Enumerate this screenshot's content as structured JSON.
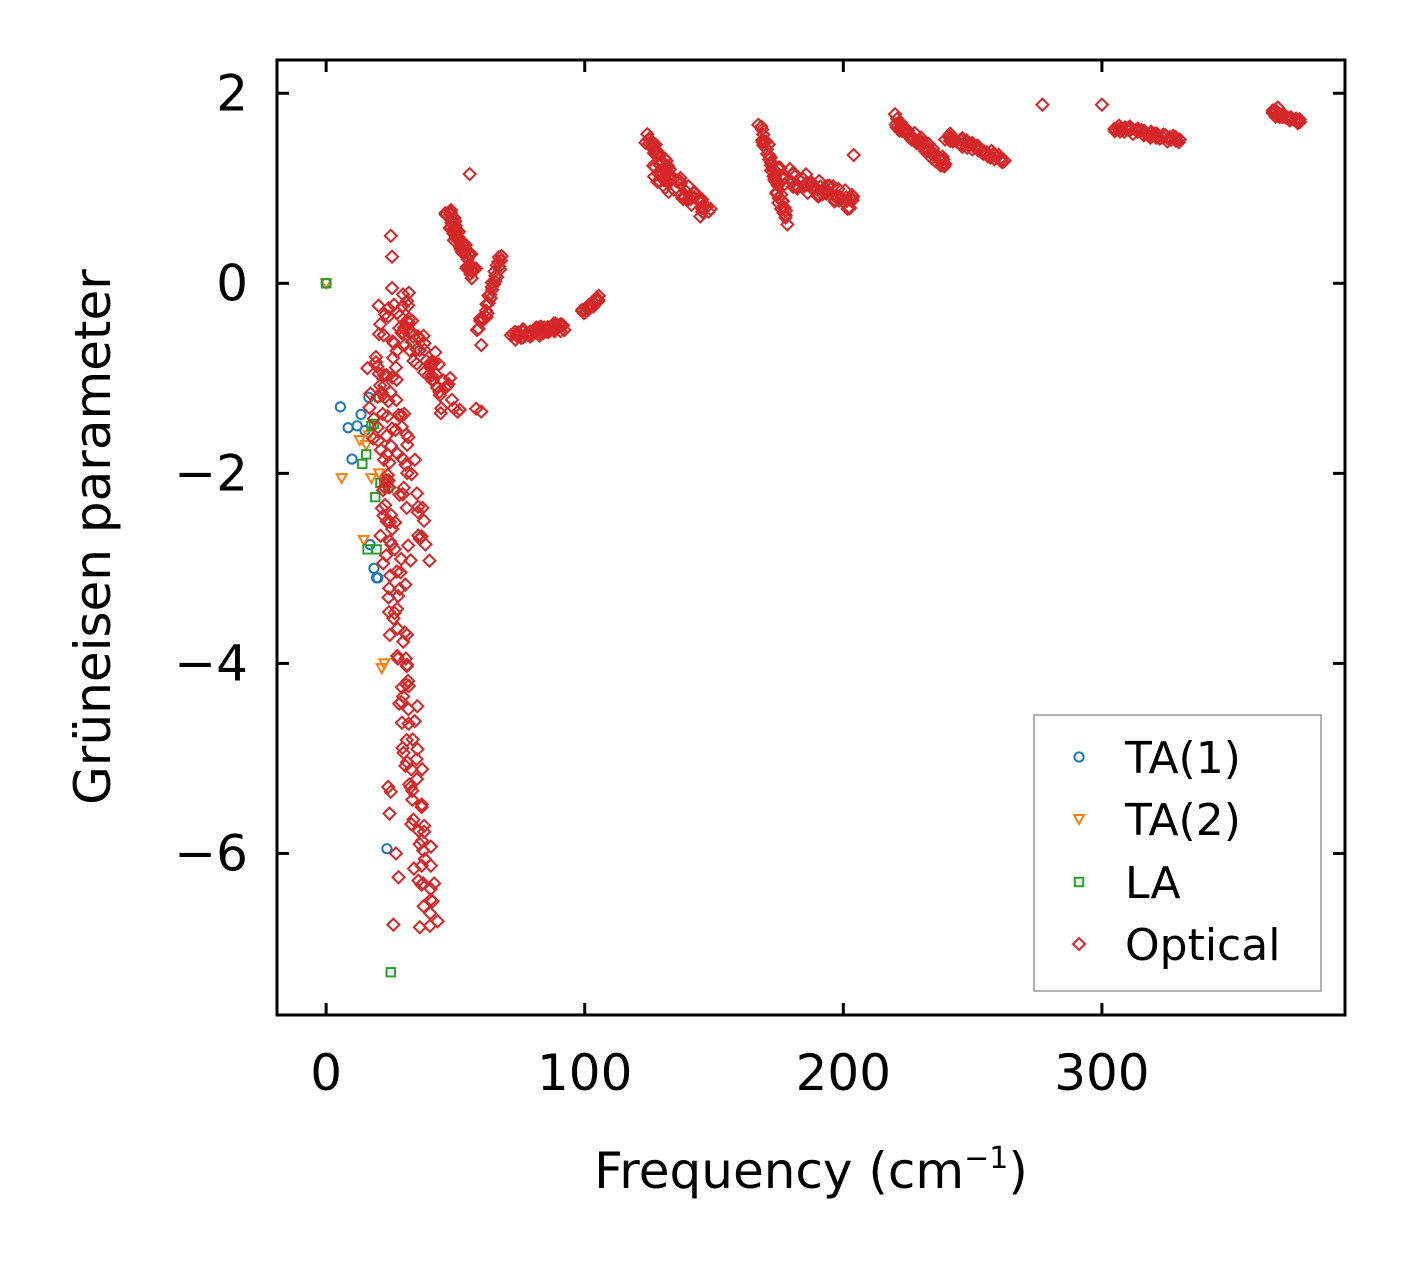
{
  "chart_data": {
    "type": "scatter",
    "title": "",
    "xlabel": "Frequency (cm",
    "xlabel_sup": "−1",
    "xlabel_close": ")",
    "ylabel": "Grüneisen parameter",
    "xlim": [
      -19,
      394
    ],
    "ylim": [
      -7.7,
      2.35
    ],
    "xticks": [
      0,
      100,
      200,
      300
    ],
    "yticks": [
      2,
      0,
      -2,
      -4,
      -6
    ],
    "xtick_labels": [
      "0",
      "100",
      "200",
      "300"
    ],
    "ytick_labels": [
      "2",
      "0",
      "−2",
      "−4",
      "−6"
    ],
    "grid": false,
    "legend_position": "lower-right",
    "series": [
      {
        "name": "TA(1)",
        "marker": "circle",
        "color": "#1f77b4",
        "points": [
          [
            0,
            0
          ],
          [
            5.5,
            -1.3
          ],
          [
            8.5,
            -1.52
          ],
          [
            10,
            -1.85
          ],
          [
            12,
            -1.5
          ],
          [
            13.5,
            -1.38
          ],
          [
            15,
            -1.55
          ],
          [
            16.5,
            -1.2
          ],
          [
            17,
            -2.75
          ],
          [
            18.5,
            -3.0
          ],
          [
            19.5,
            -3.1
          ],
          [
            20,
            -3.1
          ],
          [
            23.5,
            -5.95
          ]
        ]
      },
      {
        "name": "TA(2)",
        "marker": "triangle-down",
        "color": "#ff7f0e",
        "points": [
          [
            0,
            0
          ],
          [
            6,
            -2.05
          ],
          [
            13,
            -1.65
          ],
          [
            14.5,
            -2.7
          ],
          [
            15.5,
            -1.7
          ],
          [
            16.5,
            -1.6
          ],
          [
            17.5,
            -2.05
          ],
          [
            20.5,
            -2.0
          ],
          [
            21.5,
            -4.05
          ],
          [
            22.5,
            -4.0
          ]
        ]
      },
      {
        "name": "LA",
        "marker": "square",
        "color": "#2ca02c",
        "points": [
          [
            0,
            0
          ],
          [
            14,
            -1.9
          ],
          [
            15.5,
            -1.8
          ],
          [
            16,
            -2.8
          ],
          [
            17.5,
            -1.5
          ],
          [
            18.5,
            -1.48
          ],
          [
            19,
            -2.25
          ],
          [
            19.5,
            -2.8
          ],
          [
            20.5,
            -1.2
          ],
          [
            21,
            -2.1
          ],
          [
            22.5,
            -2.1
          ],
          [
            24,
            -2.15
          ],
          [
            25,
            -7.25
          ]
        ]
      },
      {
        "name": "Optical",
        "marker": "diamond",
        "color": "#d62728",
        "segments": [
          {
            "x": [
              18,
              40
            ],
            "y": [
              -0.8,
              -6.8
            ],
            "n": 120,
            "spread_x": 8,
            "spread_y": 0.15
          },
          {
            "x": [
              22,
              36
            ],
            "y": [
              -0.3,
              -2.9
            ],
            "n": 50,
            "spread_x": 8,
            "spread_y": 0.2
          },
          {
            "x": [
              28,
              48
            ],
            "y": [
              -0.2,
              -1.3
            ],
            "n": 60,
            "spread_x": 8,
            "spread_y": 0.25
          },
          {
            "x": [
              47,
              57
            ],
            "y": [
              0.75,
              0.1
            ],
            "n": 60,
            "spread_x": 3,
            "spread_y": 0.15
          },
          {
            "x": [
              59,
              68
            ],
            "y": [
              -0.5,
              0.3
            ],
            "n": 30,
            "spread_x": 2,
            "spread_y": 0.1
          },
          {
            "x": [
              72,
              92
            ],
            "y": [
              -0.55,
              -0.45
            ],
            "n": 60,
            "spread_x": 2,
            "spread_y": 0.1
          },
          {
            "x": [
              99,
              106
            ],
            "y": [
              -0.3,
              -0.15
            ],
            "n": 20,
            "spread_x": 1.5,
            "spread_y": 0.06
          },
          {
            "x": [
              124,
              133
            ],
            "y": [
              1.55,
              1.15
            ],
            "n": 30,
            "spread_x": 2,
            "spread_y": 0.12
          },
          {
            "x": [
              127,
              148
            ],
            "y": [
              1.2,
              0.75
            ],
            "n": 50,
            "spread_x": 3,
            "spread_y": 0.2
          },
          {
            "x": [
              168,
              178
            ],
            "y": [
              1.65,
              0.65
            ],
            "n": 40,
            "spread_x": 2,
            "spread_y": 0.12
          },
          {
            "x": [
              175,
              205
            ],
            "y": [
              1.15,
              0.85
            ],
            "n": 60,
            "spread_x": 3,
            "spread_y": 0.2
          },
          {
            "x": [
              220,
              240
            ],
            "y": [
              1.7,
              1.25
            ],
            "n": 50,
            "spread_x": 2,
            "spread_y": 0.1
          },
          {
            "x": [
              240,
              262
            ],
            "y": [
              1.55,
              1.3
            ],
            "n": 50,
            "spread_x": 2,
            "spread_y": 0.08
          },
          {
            "x": [
              305,
              330
            ],
            "y": [
              1.65,
              1.5
            ],
            "n": 50,
            "spread_x": 2,
            "spread_y": 0.08
          },
          {
            "x": [
              366,
              377
            ],
            "y": [
              1.8,
              1.7
            ],
            "n": 30,
            "spread_x": 1.5,
            "spread_y": 0.06
          }
        ],
        "points": [
          [
            25,
            0.5
          ],
          [
            25.5,
            0.28
          ],
          [
            25.5,
            -0.05
          ],
          [
            32,
            -0.1
          ],
          [
            24,
            -0.35
          ],
          [
            55.5,
            1.15
          ],
          [
            60,
            -0.65
          ],
          [
            60,
            -1.35
          ],
          [
            58,
            -1.32
          ],
          [
            204,
            1.35
          ],
          [
            220,
            1.78
          ],
          [
            277,
            1.88
          ],
          [
            300,
            1.88
          ],
          [
            368,
            1.85
          ],
          [
            305,
            1.6
          ],
          [
            24.5,
            -5.58
          ],
          [
            28,
            -6.25
          ],
          [
            26,
            -6.75
          ],
          [
            27,
            -6.0
          ],
          [
            25,
            -5.35
          ],
          [
            24,
            -5.3
          ]
        ]
      }
    ]
  }
}
